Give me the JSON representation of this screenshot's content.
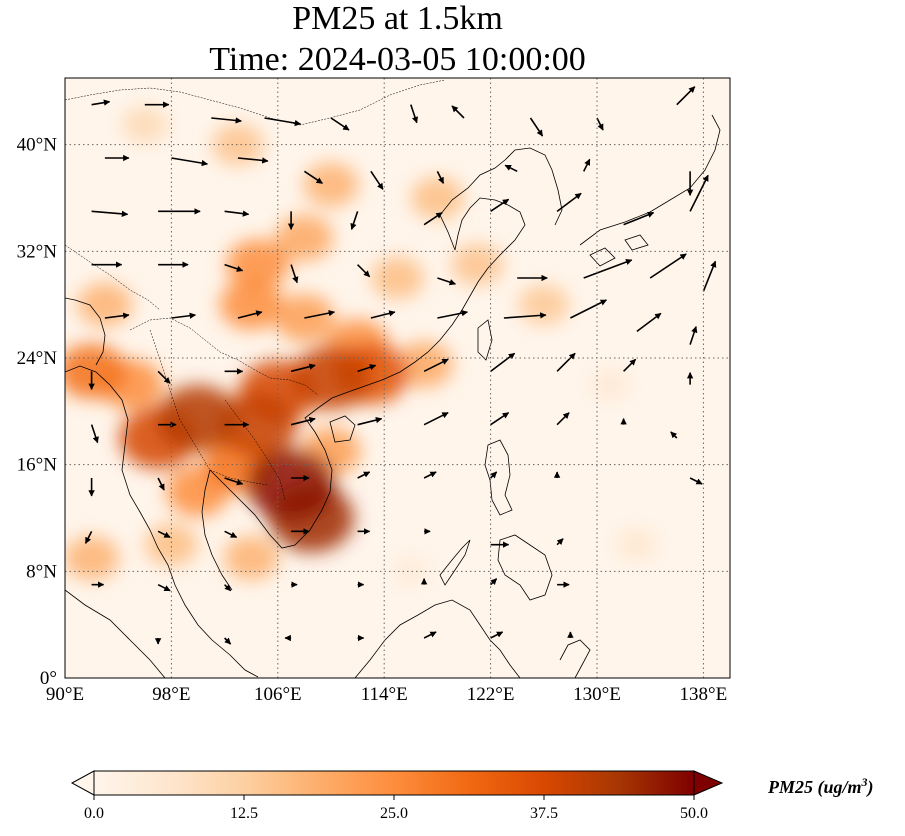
{
  "title_line1": "PM25 at 1.5km",
  "title_line2": "Time: 2024-03-05 10:00:00",
  "map": {
    "lon_range": [
      90,
      140
    ],
    "lat_range": [
      0,
      45
    ],
    "x_ticks": [
      "90°E",
      "98°E",
      "106°E",
      "114°E",
      "122°E",
      "130°E",
      "138°E"
    ],
    "x_tick_values": [
      90,
      98,
      106,
      114,
      122,
      130,
      138
    ],
    "y_ticks": [
      "0°",
      "8°N",
      "16°N",
      "24°N",
      "32°N",
      "40°N"
    ],
    "y_tick_values": [
      0,
      8,
      16,
      24,
      32,
      40
    ],
    "gridlines": true
  },
  "colorbar": {
    "title": "PM25 (ug/m",
    "title_sup": "3",
    "title_close": ")",
    "min": 0,
    "max": 50,
    "extend": "both",
    "ticks": [
      "0.0",
      "12.5",
      "25.0",
      "37.5",
      "50.0"
    ],
    "tick_values": [
      0,
      12.5,
      25,
      37.5,
      50
    ],
    "colors": [
      "#fff5eb",
      "#fee6ce",
      "#fdd0a2",
      "#fdae6b",
      "#fd8d3c",
      "#f16913",
      "#d94801",
      "#a63603",
      "#7f0000"
    ]
  },
  "pm25_hotspots": [
    {
      "lon": 107.0,
      "lat": 14.5,
      "value": 48
    },
    {
      "lon": 108.5,
      "lat": 12.0,
      "value": 45
    },
    {
      "lon": 100.0,
      "lat": 19.5,
      "value": 42
    },
    {
      "lon": 97.0,
      "lat": 18.0,
      "value": 38
    },
    {
      "lon": 104.5,
      "lat": 19.0,
      "value": 40
    },
    {
      "lon": 110.0,
      "lat": 22.5,
      "value": 40
    },
    {
      "lon": 106.0,
      "lat": 21.5,
      "value": 38
    },
    {
      "lon": 113.0,
      "lat": 22.8,
      "value": 36
    },
    {
      "lon": 103.0,
      "lat": 16.0,
      "value": 30
    },
    {
      "lon": 100.0,
      "lat": 14.0,
      "value": 25
    },
    {
      "lon": 95.0,
      "lat": 22.0,
      "value": 25
    },
    {
      "lon": 92.0,
      "lat": 23.0,
      "value": 30
    },
    {
      "lon": 104.0,
      "lat": 28.0,
      "value": 25
    },
    {
      "lon": 108.0,
      "lat": 27.0,
      "value": 22
    },
    {
      "lon": 112.0,
      "lat": 25.0,
      "value": 25
    },
    {
      "lon": 117.0,
      "lat": 23.5,
      "value": 20
    },
    {
      "lon": 104.5,
      "lat": 31.0,
      "value": 25
    },
    {
      "lon": 108.0,
      "lat": 33.0,
      "value": 20
    },
    {
      "lon": 115.0,
      "lat": 30.0,
      "value": 16
    },
    {
      "lon": 110.0,
      "lat": 37.0,
      "value": 18
    },
    {
      "lon": 103.0,
      "lat": 40.0,
      "value": 15
    },
    {
      "lon": 118.0,
      "lat": 36.0,
      "value": 16
    },
    {
      "lon": 121.0,
      "lat": 31.0,
      "value": 15
    },
    {
      "lon": 126.0,
      "lat": 28.0,
      "value": 14
    },
    {
      "lon": 92.0,
      "lat": 9.0,
      "value": 18
    },
    {
      "lon": 93.0,
      "lat": 28.0,
      "value": 18
    },
    {
      "lon": 98.0,
      "lat": 10.0,
      "value": 16
    },
    {
      "lon": 104.0,
      "lat": 9.0,
      "value": 18
    },
    {
      "lon": 110.0,
      "lat": 17.0,
      "value": 22
    },
    {
      "lon": 96.0,
      "lat": 41.5,
      "value": 10
    },
    {
      "lon": 133.0,
      "lat": 10.0,
      "value": 6
    },
    {
      "lon": 116.0,
      "lat": 8.0,
      "value": 4
    },
    {
      "lon": 131.0,
      "lat": 22.0,
      "value": 5
    }
  ],
  "wind_vectors": [
    {
      "lon": 92,
      "lat": 43,
      "u": 3,
      "v": 0.5
    },
    {
      "lon": 96,
      "lat": 43,
      "u": 4,
      "v": 0
    },
    {
      "lon": 101,
      "lat": 42,
      "u": 5,
      "v": -0.5
    },
    {
      "lon": 105,
      "lat": 42,
      "u": 6,
      "v": -1
    },
    {
      "lon": 110,
      "lat": 42,
      "u": 3,
      "v": -2
    },
    {
      "lon": 116,
      "lat": 43,
      "u": 1,
      "v": -3
    },
    {
      "lon": 120,
      "lat": 42,
      "u": -2,
      "v": 2
    },
    {
      "lon": 125,
      "lat": 42,
      "u": 2,
      "v": -3
    },
    {
      "lon": 130,
      "lat": 42,
      "u": 1,
      "v": -2
    },
    {
      "lon": 136,
      "lat": 43,
      "u": 3,
      "v": 3
    },
    {
      "lon": 93,
      "lat": 39,
      "u": 4,
      "v": 0
    },
    {
      "lon": 98,
      "lat": 39,
      "u": 6,
      "v": -1
    },
    {
      "lon": 103,
      "lat": 39,
      "u": 5,
      "v": -0.5
    },
    {
      "lon": 108,
      "lat": 38,
      "u": 3,
      "v": -2
    },
    {
      "lon": 113,
      "lat": 38,
      "u": 2,
      "v": -3
    },
    {
      "lon": 118,
      "lat": 38,
      "u": 1,
      "v": -2
    },
    {
      "lon": 124,
      "lat": 38,
      "u": -2,
      "v": 1
    },
    {
      "lon": 129,
      "lat": 38,
      "u": 1,
      "v": 2
    },
    {
      "lon": 137,
      "lat": 38,
      "u": 0,
      "v": -4
    },
    {
      "lon": 92,
      "lat": 35,
      "u": 6,
      "v": -0.5
    },
    {
      "lon": 97,
      "lat": 35,
      "u": 7,
      "v": 0
    },
    {
      "lon": 102,
      "lat": 35,
      "u": 4,
      "v": -0.5
    },
    {
      "lon": 107,
      "lat": 35,
      "u": 0,
      "v": -3
    },
    {
      "lon": 112,
      "lat": 35,
      "u": -1,
      "v": -3
    },
    {
      "lon": 117,
      "lat": 34,
      "u": 3,
      "v": 2
    },
    {
      "lon": 122,
      "lat": 35,
      "u": 3,
      "v": 2
    },
    {
      "lon": 127,
      "lat": 35,
      "u": 4,
      "v": 3
    },
    {
      "lon": 132,
      "lat": 34,
      "u": 5,
      "v": 2
    },
    {
      "lon": 137,
      "lat": 35,
      "u": 3,
      "v": 6
    },
    {
      "lon": 92,
      "lat": 31,
      "u": 5,
      "v": 0
    },
    {
      "lon": 97,
      "lat": 31,
      "u": 5,
      "v": 0
    },
    {
      "lon": 102,
      "lat": 31,
      "u": 3,
      "v": -1
    },
    {
      "lon": 107,
      "lat": 31,
      "u": 1,
      "v": -3
    },
    {
      "lon": 112,
      "lat": 31,
      "u": 2,
      "v": -2
    },
    {
      "lon": 118,
      "lat": 30,
      "u": 3,
      "v": -1
    },
    {
      "lon": 124,
      "lat": 30,
      "u": 5,
      "v": 0
    },
    {
      "lon": 129,
      "lat": 30,
      "u": 8,
      "v": 3
    },
    {
      "lon": 134,
      "lat": 30,
      "u": 6,
      "v": 4
    },
    {
      "lon": 138,
      "lat": 29,
      "u": 2,
      "v": 5
    },
    {
      "lon": 93,
      "lat": 27,
      "u": 4,
      "v": 0.5
    },
    {
      "lon": 98,
      "lat": 27,
      "u": 4,
      "v": 0.5
    },
    {
      "lon": 103,
      "lat": 27,
      "u": 4,
      "v": 1
    },
    {
      "lon": 108,
      "lat": 27,
      "u": 5,
      "v": 1
    },
    {
      "lon": 113,
      "lat": 27,
      "u": 4,
      "v": 1
    },
    {
      "lon": 118,
      "lat": 27,
      "u": 5,
      "v": 1
    },
    {
      "lon": 123,
      "lat": 27,
      "u": 7,
      "v": 0.5
    },
    {
      "lon": 128,
      "lat": 27,
      "u": 6,
      "v": 3
    },
    {
      "lon": 133,
      "lat": 26,
      "u": 4,
      "v": 3
    },
    {
      "lon": 137,
      "lat": 25,
      "u": 1,
      "v": 3
    },
    {
      "lon": 92,
      "lat": 23,
      "u": 0,
      "v": -3
    },
    {
      "lon": 97,
      "lat": 23,
      "u": 2,
      "v": -2
    },
    {
      "lon": 102,
      "lat": 23,
      "u": 3,
      "v": 0
    },
    {
      "lon": 107,
      "lat": 23,
      "u": 4,
      "v": 1
    },
    {
      "lon": 112,
      "lat": 23,
      "u": 3,
      "v": 1
    },
    {
      "lon": 117,
      "lat": 23,
      "u": 4,
      "v": 2
    },
    {
      "lon": 122,
      "lat": 23,
      "u": 4,
      "v": 3
    },
    {
      "lon": 127,
      "lat": 23,
      "u": 3,
      "v": 3
    },
    {
      "lon": 132,
      "lat": 23,
      "u": 2,
      "v": 2
    },
    {
      "lon": 137,
      "lat": 22,
      "u": 0,
      "v": 2
    },
    {
      "lon": 92,
      "lat": 19,
      "u": 1,
      "v": -3
    },
    {
      "lon": 97,
      "lat": 19,
      "u": 3,
      "v": 0
    },
    {
      "lon": 102,
      "lat": 19,
      "u": 4,
      "v": 0
    },
    {
      "lon": 107,
      "lat": 19,
      "u": 4,
      "v": 1
    },
    {
      "lon": 112,
      "lat": 19,
      "u": 4,
      "v": 1
    },
    {
      "lon": 117,
      "lat": 19,
      "u": 4,
      "v": 2
    },
    {
      "lon": 122,
      "lat": 19,
      "u": 3,
      "v": 2
    },
    {
      "lon": 127,
      "lat": 19,
      "u": 2,
      "v": 2
    },
    {
      "lon": 132,
      "lat": 19,
      "u": 0,
      "v": 1
    },
    {
      "lon": 136,
      "lat": 18,
      "u": -1,
      "v": 1
    },
    {
      "lon": 92,
      "lat": 15,
      "u": 0,
      "v": -3
    },
    {
      "lon": 97,
      "lat": 15,
      "u": 1,
      "v": -2
    },
    {
      "lon": 102,
      "lat": 15,
      "u": 3,
      "v": -1
    },
    {
      "lon": 107,
      "lat": 15,
      "u": 3,
      "v": 0
    },
    {
      "lon": 112,
      "lat": 15,
      "u": 2,
      "v": 1
    },
    {
      "lon": 117,
      "lat": 15,
      "u": 2,
      "v": 1
    },
    {
      "lon": 122,
      "lat": 15,
      "u": 1,
      "v": 1
    },
    {
      "lon": 127,
      "lat": 15,
      "u": 0,
      "v": 1
    },
    {
      "lon": 137,
      "lat": 15,
      "u": 2,
      "v": -1
    },
    {
      "lon": 92,
      "lat": 11,
      "u": -1,
      "v": -2
    },
    {
      "lon": 97,
      "lat": 11,
      "u": 2,
      "v": -1
    },
    {
      "lon": 102,
      "lat": 11,
      "u": 2,
      "v": -1
    },
    {
      "lon": 107,
      "lat": 11,
      "u": 3,
      "v": 0
    },
    {
      "lon": 112,
      "lat": 11,
      "u": 2,
      "v": 0
    },
    {
      "lon": 117,
      "lat": 11,
      "u": 1,
      "v": 0
    },
    {
      "lon": 122,
      "lat": 10,
      "u": 3,
      "v": 0
    },
    {
      "lon": 127,
      "lat": 10,
      "u": 1,
      "v": 1
    },
    {
      "lon": 92,
      "lat": 7,
      "u": 2,
      "v": 0
    },
    {
      "lon": 97,
      "lat": 7,
      "u": 2,
      "v": -1
    },
    {
      "lon": 102,
      "lat": 7,
      "u": 1,
      "v": -1
    },
    {
      "lon": 107,
      "lat": 7,
      "u": 1,
      "v": 0
    },
    {
      "lon": 112,
      "lat": 7,
      "u": 1,
      "v": 0
    },
    {
      "lon": 117,
      "lat": 7,
      "u": 0,
      "v": 1
    },
    {
      "lon": 122,
      "lat": 7,
      "u": 1,
      "v": 1
    },
    {
      "lon": 127,
      "lat": 7,
      "u": 2,
      "v": 0
    },
    {
      "lon": 97,
      "lat": 3,
      "u": 0,
      "v": -1
    },
    {
      "lon": 102,
      "lat": 3,
      "u": 1,
      "v": -1
    },
    {
      "lon": 107,
      "lat": 3,
      "u": -1,
      "v": 0
    },
    {
      "lon": 112,
      "lat": 3,
      "u": 1,
      "v": 0
    },
    {
      "lon": 117,
      "lat": 3,
      "u": 2,
      "v": 1
    },
    {
      "lon": 122,
      "lat": 3,
      "u": 2,
      "v": 1
    },
    {
      "lon": 128,
      "lat": 3,
      "u": 0,
      "v": 1
    }
  ]
}
